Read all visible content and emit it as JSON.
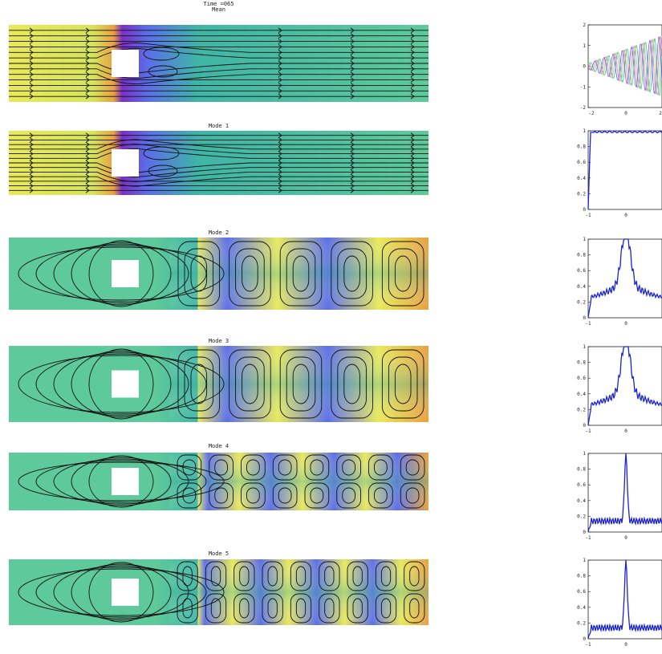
{
  "figure": {
    "time_label": "Time =065",
    "panels": [
      {
        "title": "Mean",
        "kind": "mean"
      },
      {
        "title": "Mode 1",
        "kind": "mean"
      },
      {
        "title": "Mode 2",
        "kind": "mode",
        "cells": 5
      },
      {
        "title": "Mode 3",
        "kind": "mode",
        "cells": 5
      },
      {
        "title": "Mode 4",
        "kind": "mode2",
        "cells": 8
      },
      {
        "title": "Mode 5",
        "kind": "mode2",
        "cells": 9
      }
    ]
  },
  "right_plots": [
    {
      "type": "oscillation",
      "xticks": [
        "-2",
        "0",
        "2"
      ],
      "yticks": [
        "2",
        "1",
        "0",
        "-1",
        "-2"
      ]
    },
    {
      "type": "spectrum",
      "shape": "plateau",
      "xticks": [
        "-1",
        "0"
      ],
      "yticks": [
        "1",
        "0.8",
        "0.6",
        "0.4",
        "0.2",
        "0"
      ]
    },
    {
      "type": "spectrum",
      "shape": "peak-broad",
      "xticks": [
        "-1",
        "0"
      ],
      "yticks": [
        "1",
        "0.8",
        "0.6",
        "0.4",
        "0.2",
        "0"
      ]
    },
    {
      "type": "spectrum",
      "shape": "peak-broad2",
      "xticks": [
        "-1",
        "0"
      ],
      "yticks": [
        "1",
        "0.8",
        "0.6",
        "0.4",
        "0.2",
        "0"
      ]
    },
    {
      "type": "spectrum",
      "shape": "peak-sharp",
      "xticks": [
        "-1",
        "0"
      ],
      "yticks": [
        "1",
        "0.8",
        "0.6",
        "0.4",
        "0.2",
        "0"
      ]
    },
    {
      "type": "spectrum",
      "shape": "peak-sharp2",
      "xticks": [
        "-1",
        "0"
      ],
      "yticks": [
        "1",
        "0.8",
        "0.6",
        "0.4",
        "0.2",
        "0"
      ]
    }
  ],
  "colors": {
    "yellow": "#e9e95a",
    "green": "#5ec99a",
    "teal": "#3fb5a6",
    "blue": "#5b6ee8",
    "purple": "#7a2fc5",
    "orange": "#e8a040",
    "line": "#1a22d8",
    "streamline": "#111111"
  }
}
